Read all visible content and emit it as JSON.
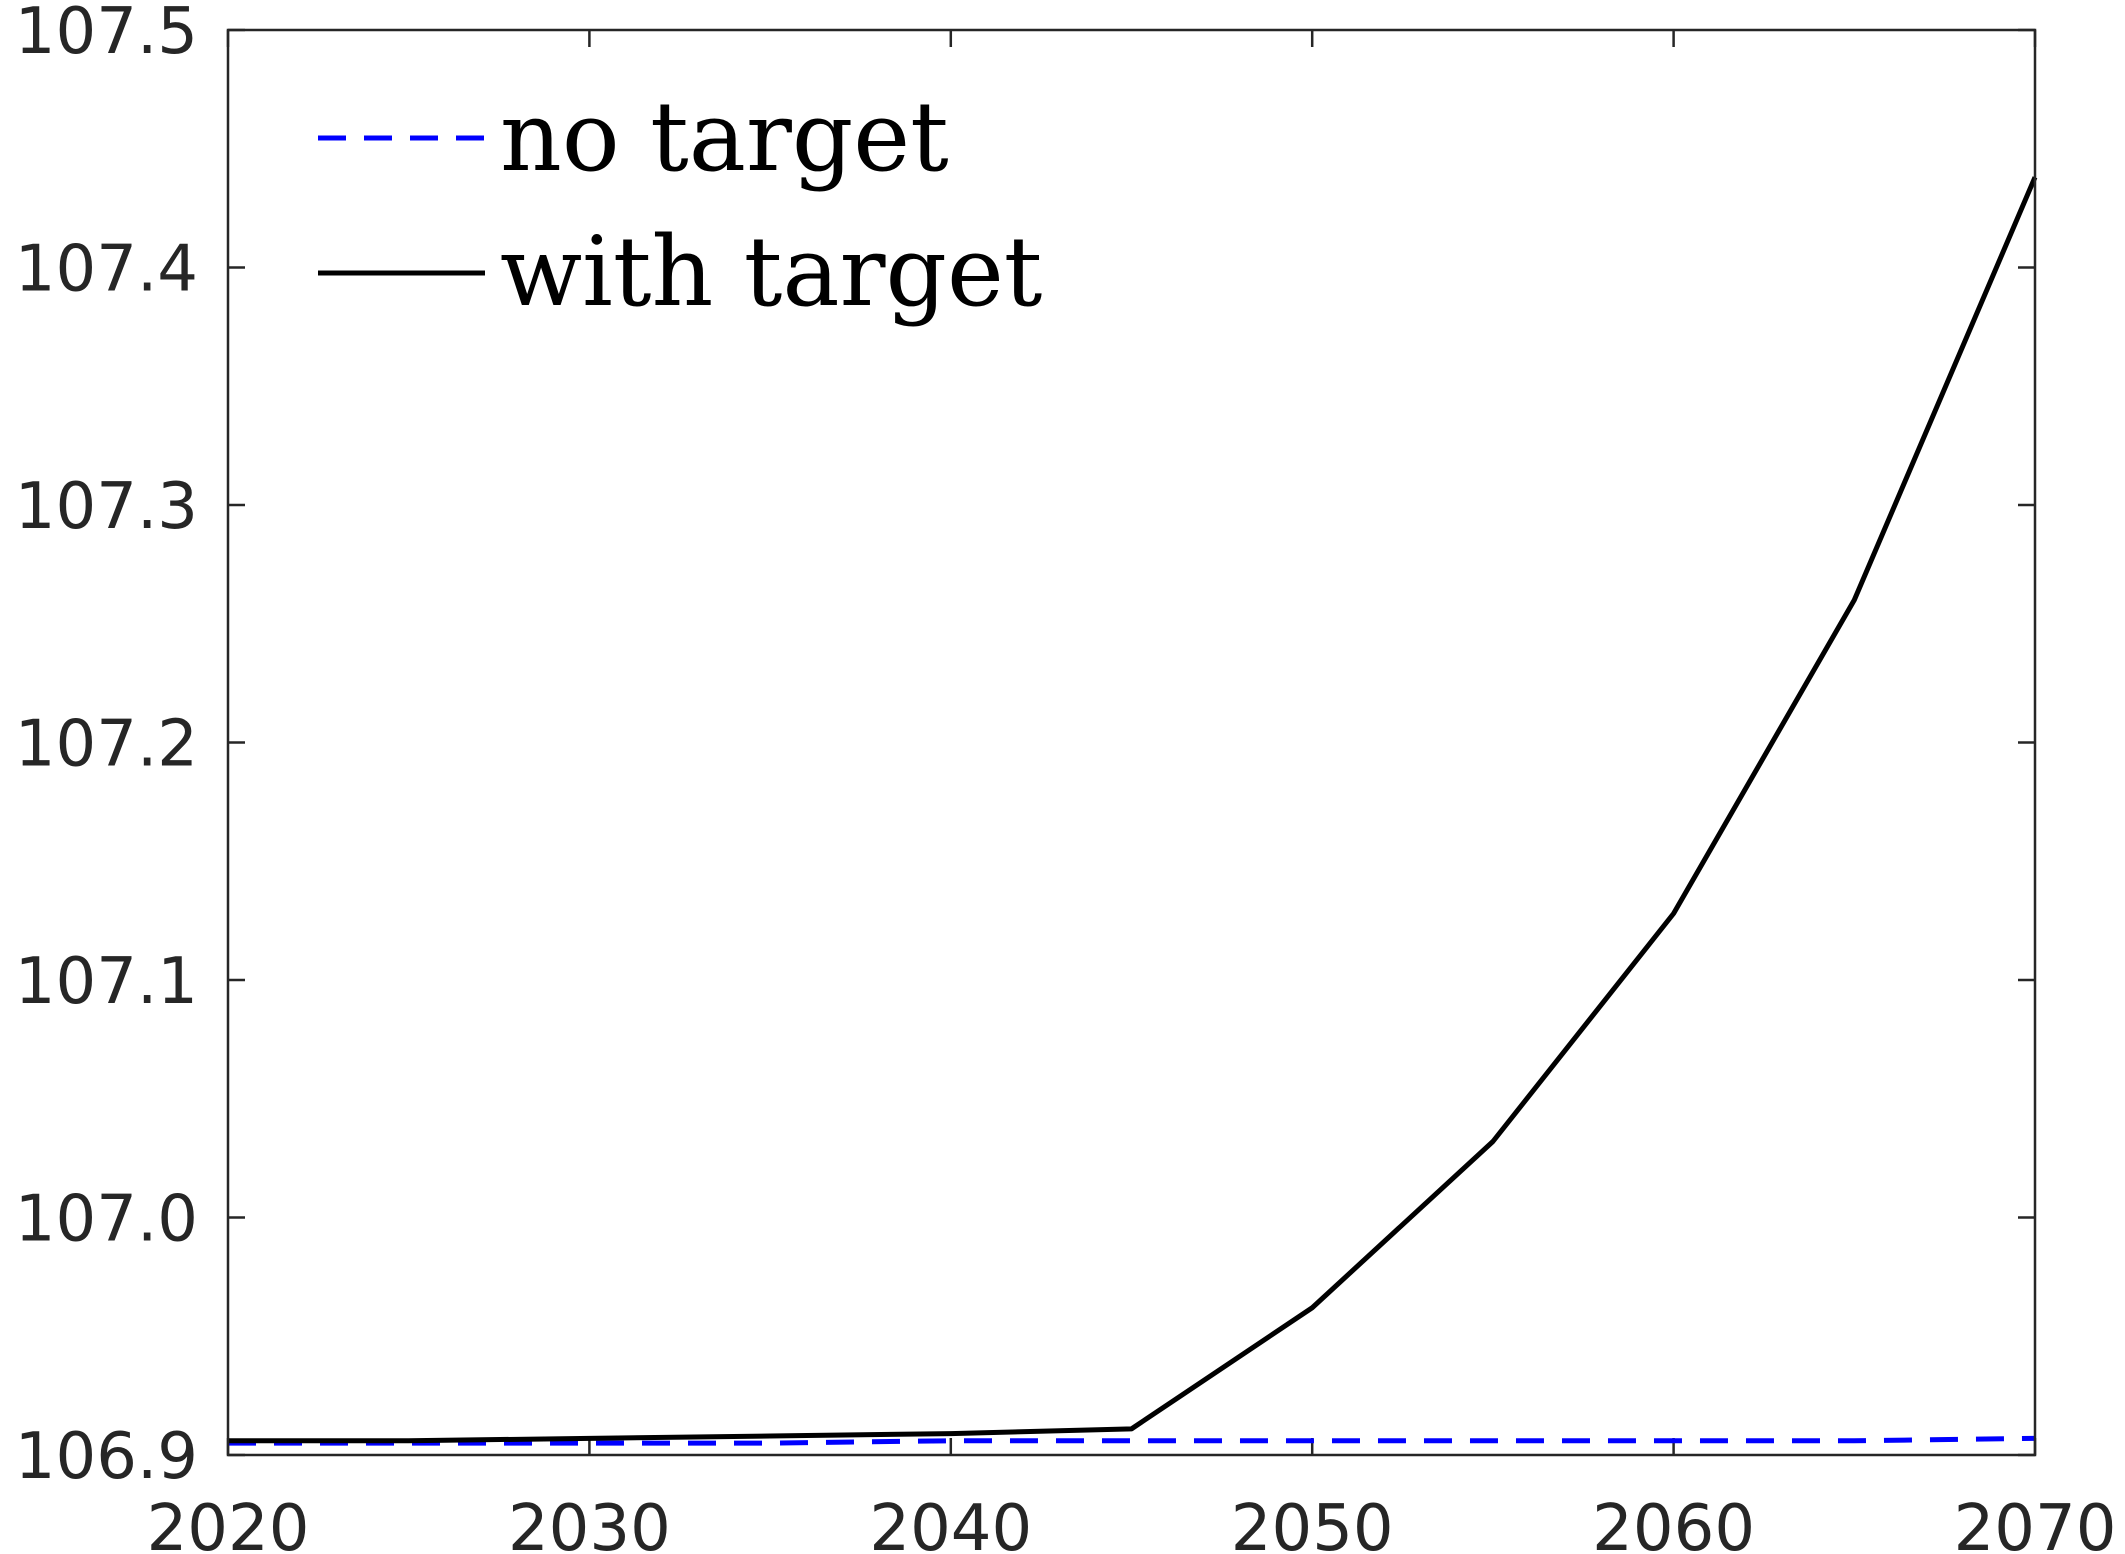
{
  "chart_data": {
    "type": "line",
    "title": "",
    "xlabel": "",
    "ylabel": "",
    "xlim": [
      2020,
      2070
    ],
    "ylim": [
      106.9,
      107.5
    ],
    "xticks": [
      2020,
      2030,
      2040,
      2050,
      2060,
      2070
    ],
    "yticks": [
      106.9,
      107.0,
      107.1,
      107.2,
      107.3,
      107.4,
      107.5
    ],
    "xtick_labels": [
      "2020",
      "2030",
      "2040",
      "2050",
      "2060",
      "2070"
    ],
    "ytick_labels": [
      "106.9",
      "107.0",
      "107.1",
      "107.2",
      "107.3",
      "107.4",
      "107.5"
    ],
    "grid": false,
    "legend_position": "top-left",
    "series": [
      {
        "name": "no target",
        "color": "#0000ff",
        "style": "dashed",
        "x": [
          2020,
          2025,
          2030,
          2035,
          2040,
          2045,
          2050,
          2055,
          2060,
          2065,
          2070
        ],
        "y": [
          106.905,
          106.905,
          106.905,
          106.905,
          106.906,
          106.906,
          106.906,
          106.906,
          106.906,
          106.906,
          106.907
        ]
      },
      {
        "name": "with target",
        "color": "#000000",
        "style": "solid",
        "x": [
          2020,
          2025,
          2030,
          2035,
          2040,
          2045,
          2050,
          2055,
          2060,
          2065,
          2070
        ],
        "y": [
          106.906,
          106.906,
          106.907,
          106.908,
          106.909,
          106.911,
          106.962,
          107.032,
          107.128,
          107.26,
          107.438
        ]
      }
    ]
  }
}
